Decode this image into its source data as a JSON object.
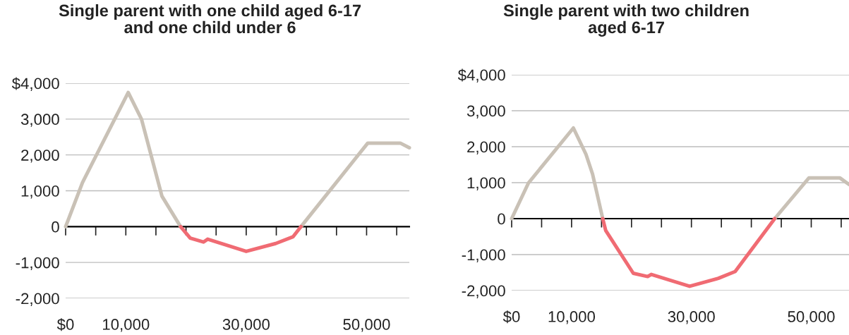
{
  "chart_data": [
    {
      "type": "line",
      "title": "Single parent with one child aged 6-17\nand one child under 6",
      "series": [
        {
          "color": "#c9c1b6",
          "x": [
            0,
            2800,
            10400,
            12600,
            16000,
            19100,
            29000,
            39100,
            50200,
            55600,
            57100
          ],
          "values": [
            0,
            1230,
            3740,
            3000,
            850,
            0,
            null,
            0,
            2330,
            2330,
            2200
          ]
        },
        {
          "color": "#f06b73",
          "x": [
            19100,
            20700,
            22900,
            23600,
            30000,
            34900,
            37800,
            39100
          ],
          "values": [
            0,
            -320,
            -430,
            -350,
            -690,
            -470,
            -280,
            0
          ]
        }
      ],
      "xlim": [
        0,
        57100
      ],
      "ylim": [
        -2000,
        4000
      ],
      "xticks": [
        {
          "value": 0,
          "label": "$0"
        },
        {
          "value": 5000,
          "label": null
        },
        {
          "value": 10000,
          "label": "10,000"
        },
        {
          "value": 15000,
          "label": null
        },
        {
          "value": 20000,
          "label": null
        },
        {
          "value": 25000,
          "label": null
        },
        {
          "value": 30000,
          "label": "30,000"
        },
        {
          "value": 35000,
          "label": null
        },
        {
          "value": 40000,
          "label": null
        },
        {
          "value": 45000,
          "label": null
        },
        {
          "value": 50000,
          "label": "50,000"
        },
        {
          "value": 55000,
          "label": null
        }
      ],
      "yticks": [
        {
          "value": -2000,
          "label": "-2,000"
        },
        {
          "value": -1000,
          "label": "-1,000"
        },
        0,
        {
          "value": 1000,
          "label": "1,000"
        },
        {
          "value": 2000,
          "label": "2,000"
        },
        {
          "value": 3000,
          "label": "3,000"
        },
        {
          "value": 4000,
          "label": "$4,000"
        }
      ],
      "grid": "y",
      "marker": "none",
      "line_style": "solid"
    },
    {
      "type": "line",
      "title": "Single parent with two children\naged 6-17",
      "series": [
        {
          "color": "#c9c1b6",
          "x": [
            0,
            2800,
            10300,
            12400,
            13500,
            15200,
            30000,
            43900,
            49600,
            54800,
            56300
          ],
          "values": [
            0,
            990,
            2520,
            1790,
            1240,
            0,
            null,
            0,
            1130,
            1130,
            950
          ]
        },
        {
          "color": "#f06b73",
          "x": [
            15200,
            15700,
            20300,
            22700,
            23300,
            29700,
            34500,
            37300,
            43900
          ],
          "values": [
            0,
            -330,
            -1520,
            -1610,
            -1550,
            -1880,
            -1660,
            -1470,
            0
          ]
        }
      ],
      "xlim": [
        0,
        56300
      ],
      "ylim": [
        -2000,
        4000
      ],
      "xticks": [
        {
          "value": 0,
          "label": "$0"
        },
        {
          "value": 5000,
          "label": null
        },
        {
          "value": 10000,
          "label": "10,000"
        },
        {
          "value": 15000,
          "label": null
        },
        {
          "value": 20000,
          "label": null
        },
        {
          "value": 25000,
          "label": null
        },
        {
          "value": 30000,
          "label": "30,000"
        },
        {
          "value": 35000,
          "label": null
        },
        {
          "value": 40000,
          "label": null
        },
        {
          "value": 45000,
          "label": null
        },
        {
          "value": 50000,
          "label": "50,000"
        },
        {
          "value": 55000,
          "label": null
        }
      ],
      "yticks": [
        {
          "value": -2000,
          "label": "-2,000"
        },
        {
          "value": -1000,
          "label": "-1,000"
        },
        0,
        {
          "value": 1000,
          "label": "1,000"
        },
        {
          "value": 2000,
          "label": "2,000"
        },
        {
          "value": 3000,
          "label": "3,000"
        },
        {
          "value": 4000,
          "label": "$4,000"
        }
      ],
      "grid": "y",
      "marker": "none",
      "line_style": "solid"
    }
  ]
}
